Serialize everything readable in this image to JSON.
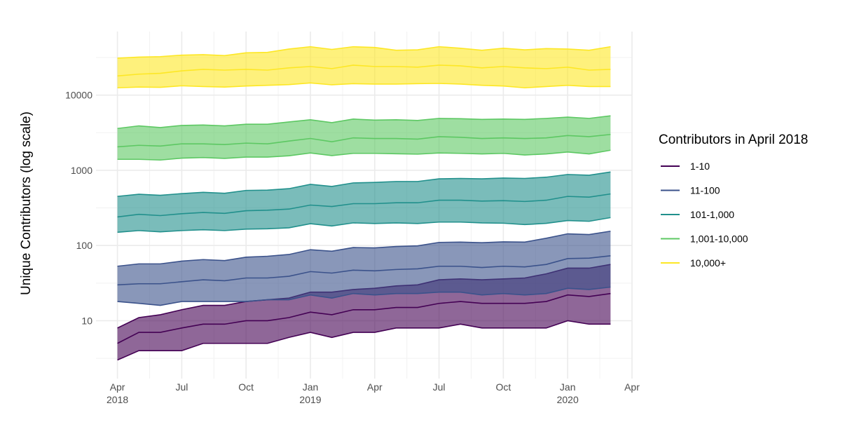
{
  "chart_data": {
    "type": "ribbon",
    "ylabel": "Unique Contributors (log scale)",
    "log_y": true,
    "grid": true,
    "legend_title": "Contributors in April 2018",
    "legend": "right",
    "x": [
      "2018-04",
      "2018-05",
      "2018-06",
      "2018-07",
      "2018-08",
      "2018-09",
      "2018-10",
      "2018-11",
      "2018-12",
      "2019-01",
      "2019-02",
      "2019-03",
      "2019-04",
      "2019-05",
      "2019-06",
      "2019-07",
      "2019-08",
      "2019-09",
      "2019-10",
      "2019-11",
      "2019-12",
      "2020-01",
      "2020-02",
      "2020-03"
    ],
    "xlim": [
      "2018-03",
      "2020-04"
    ],
    "xticks": [
      {
        "value": "2018-04",
        "label": [
          "Apr",
          "2018"
        ]
      },
      {
        "value": "2018-07",
        "label": [
          "Jul"
        ]
      },
      {
        "value": "2018-10",
        "label": [
          "Oct"
        ]
      },
      {
        "value": "2019-01",
        "label": [
          "Jan",
          "2019"
        ]
      },
      {
        "value": "2019-04",
        "label": [
          "Apr"
        ]
      },
      {
        "value": "2019-07",
        "label": [
          "Jul"
        ]
      },
      {
        "value": "2019-10",
        "label": [
          "Oct"
        ]
      },
      {
        "value": "2020-01",
        "label": [
          "Jan",
          "2020"
        ]
      },
      {
        "value": "2020-04",
        "label": [
          "Apr"
        ]
      }
    ],
    "ylim": [
      1.7,
      70000
    ],
    "yticks": [
      10,
      100,
      1000,
      10000
    ],
    "series": [
      {
        "name": "1-10",
        "color": "#440154",
        "lower": [
          3,
          4,
          4,
          4,
          5,
          5,
          5,
          5,
          6,
          7,
          6,
          7,
          7,
          8,
          8,
          8,
          9,
          8,
          8,
          8,
          8,
          10,
          9,
          9
        ],
        "median": [
          5,
          7,
          7,
          8,
          9,
          9,
          10,
          10,
          11,
          13,
          12,
          14,
          14,
          15,
          15,
          17,
          18,
          17,
          17,
          17,
          18,
          22,
          21,
          23
        ],
        "upper": [
          8,
          11,
          12,
          14,
          16,
          16,
          18,
          19,
          20,
          24,
          24,
          26,
          27,
          29,
          30,
          35,
          36,
          35,
          36,
          37,
          42,
          50,
          50,
          56
        ]
      },
      {
        "name": "11-100",
        "color": "#3b528b",
        "lower": [
          18,
          17,
          16,
          18,
          18,
          18,
          18,
          19,
          19,
          22,
          20,
          23,
          22,
          23,
          23,
          24,
          24,
          22,
          23,
          22,
          23,
          27,
          26,
          28
        ],
        "median": [
          30,
          31,
          31,
          33,
          35,
          34,
          37,
          37,
          39,
          45,
          43,
          47,
          46,
          48,
          49,
          53,
          53,
          51,
          53,
          52,
          56,
          67,
          68,
          73
        ],
        "upper": [
          53,
          57,
          57,
          62,
          65,
          63,
          70,
          72,
          76,
          88,
          84,
          94,
          93,
          97,
          99,
          110,
          111,
          109,
          112,
          111,
          125,
          143,
          140,
          155
        ]
      },
      {
        "name": "101-1,000",
        "color": "#21908c",
        "lower": [
          150,
          158,
          152,
          158,
          162,
          158,
          165,
          167,
          172,
          195,
          182,
          200,
          196,
          200,
          196,
          205,
          205,
          200,
          198,
          190,
          197,
          215,
          210,
          235
        ],
        "median": [
          240,
          260,
          250,
          265,
          275,
          268,
          290,
          295,
          305,
          345,
          330,
          360,
          360,
          370,
          370,
          400,
          400,
          390,
          395,
          385,
          400,
          450,
          440,
          485
        ],
        "upper": [
          450,
          480,
          465,
          490,
          510,
          495,
          540,
          545,
          570,
          650,
          610,
          680,
          690,
          710,
          710,
          770,
          780,
          770,
          790,
          780,
          810,
          880,
          860,
          950
        ]
      },
      {
        "name": "1,001-10,000",
        "color": "#5dc863",
        "lower": [
          1400,
          1400,
          1370,
          1450,
          1480,
          1440,
          1500,
          1500,
          1560,
          1700,
          1570,
          1680,
          1680,
          1660,
          1640,
          1700,
          1680,
          1650,
          1680,
          1600,
          1650,
          1750,
          1650,
          1850
        ],
        "median": [
          2050,
          2150,
          2100,
          2250,
          2250,
          2200,
          2300,
          2250,
          2450,
          2650,
          2400,
          2700,
          2650,
          2650,
          2600,
          2800,
          2750,
          2650,
          2700,
          2650,
          2700,
          2900,
          2800,
          3000
        ],
        "upper": [
          3600,
          3900,
          3700,
          3950,
          4000,
          3900,
          4100,
          4100,
          4400,
          4700,
          4300,
          4800,
          4650,
          4700,
          4600,
          4900,
          4850,
          4750,
          4800,
          4750,
          4900,
          5100,
          4900,
          5300
        ]
      },
      {
        "name": "10,000+",
        "color": "#fde725",
        "lower": [
          12500,
          12800,
          12700,
          13300,
          13000,
          12800,
          13200,
          13500,
          13800,
          14500,
          13700,
          14200,
          14000,
          14000,
          14200,
          14300,
          14000,
          13500,
          13200,
          12500,
          13000,
          13500,
          13000,
          13000
        ],
        "median": [
          18000,
          19000,
          19500,
          21000,
          22000,
          21500,
          22000,
          21500,
          23000,
          24000,
          22500,
          25000,
          24000,
          24000,
          23500,
          25000,
          24500,
          23000,
          24000,
          23000,
          22500,
          23500,
          21500,
          22000
        ],
        "upper": [
          31000,
          32000,
          32500,
          34000,
          34500,
          33500,
          36500,
          37000,
          41000,
          44000,
          40500,
          44000,
          43000,
          39500,
          40000,
          44000,
          42000,
          39500,
          42000,
          40000,
          41500,
          41000,
          39500,
          44000
        ]
      }
    ]
  }
}
